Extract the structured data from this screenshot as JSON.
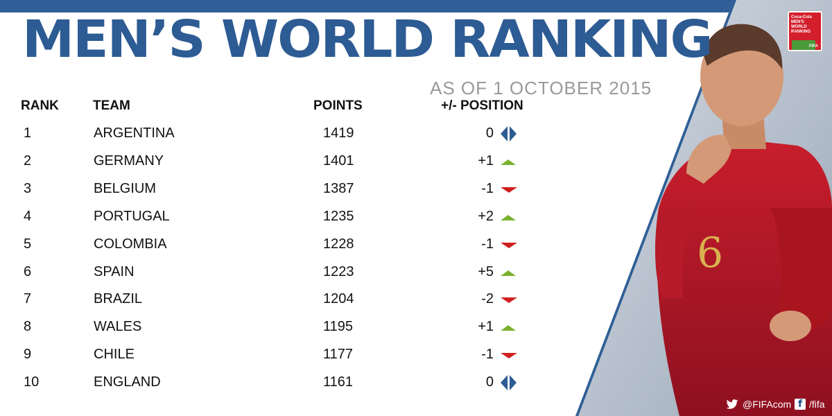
{
  "title": "MEN’S WORLD RANKING",
  "subtitle": "AS OF 1 OCTOBER 2015",
  "logo": {
    "text": "Coca-Cola MEN'S WORLD RANKING",
    "brand": "FIFA",
    "icon": "fifa-ranking-logo"
  },
  "columns": {
    "rank": "RANK",
    "team": "TEAM",
    "points": "POINTS",
    "position": "+/- POSITION"
  },
  "rows": [
    {
      "rank": "1",
      "team": "ARGENTINA",
      "points": "1419",
      "change": "0",
      "trend": "same"
    },
    {
      "rank": "2",
      "team": "GERMANY",
      "points": "1401",
      "change": "+1",
      "trend": "up"
    },
    {
      "rank": "3",
      "team": "BELGIUM",
      "points": "1387",
      "change": "-1",
      "trend": "down"
    },
    {
      "rank": "4",
      "team": "PORTUGAL",
      "points": "1235",
      "change": "+2",
      "trend": "up"
    },
    {
      "rank": "5",
      "team": "COLOMBIA",
      "points": "1228",
      "change": "-1",
      "trend": "down"
    },
    {
      "rank": "6",
      "team": "SPAIN",
      "points": "1223",
      "change": "+5",
      "trend": "up"
    },
    {
      "rank": "7",
      "team": "BRAZIL",
      "points": "1204",
      "change": "-2",
      "trend": "down"
    },
    {
      "rank": "8",
      "team": "WALES",
      "points": "1195",
      "change": "+1",
      "trend": "up"
    },
    {
      "rank": "9",
      "team": "CHILE",
      "points": "1177",
      "change": "-1",
      "trend": "down"
    },
    {
      "rank": "10",
      "team": "ENGLAND",
      "points": "1161",
      "change": "0",
      "trend": "same"
    }
  ],
  "social": {
    "twitter": "@FIFAcom",
    "facebook": "/fifa"
  },
  "colors": {
    "title": "#2d5b93",
    "up": "#7bb12f",
    "down": "#d01f1f",
    "same": "#2d5b93"
  }
}
